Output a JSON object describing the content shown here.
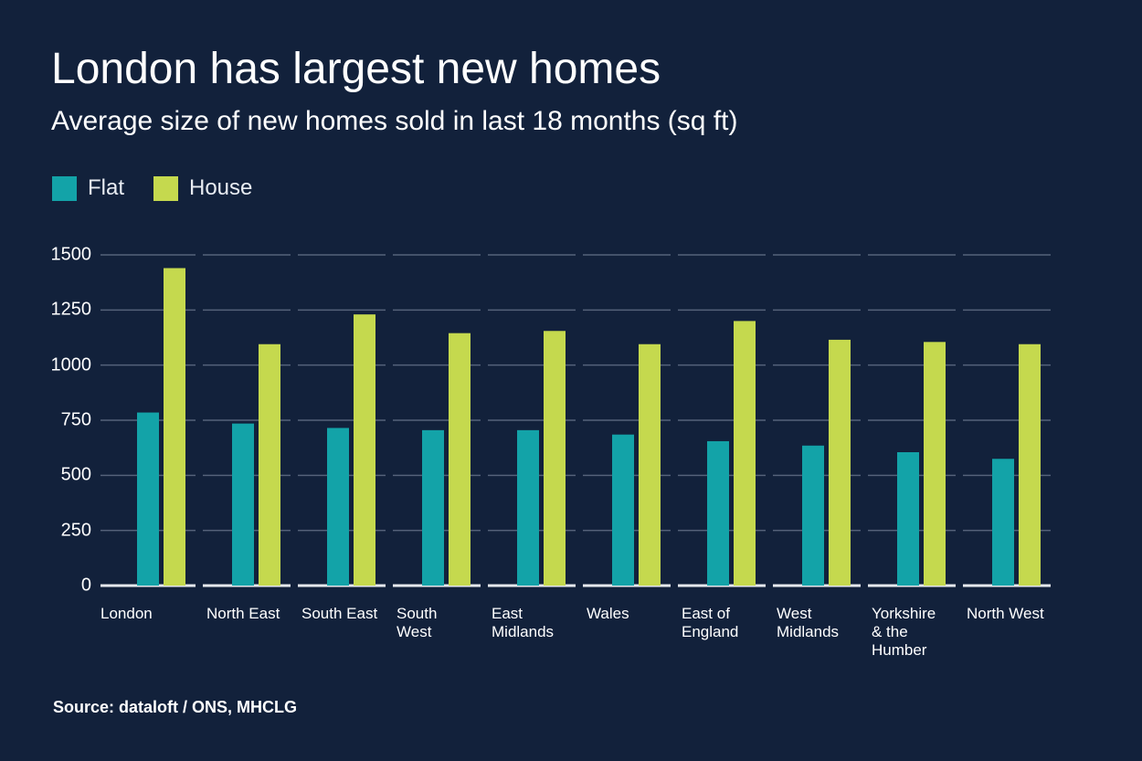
{
  "chart_data": {
    "type": "bar",
    "title": "London has largest new homes",
    "subtitle": "Average size of new homes sold in last 18 months (sq ft)",
    "categories": [
      "London",
      "North East",
      "South East",
      "South West",
      "East Midlands",
      "Wales",
      "East of England",
      "West Midlands",
      "Yorkshire & the Humber",
      "North West"
    ],
    "series": [
      {
        "name": "Flat",
        "color": "#13a3a8",
        "values": [
          785,
          735,
          715,
          705,
          705,
          685,
          655,
          635,
          605,
          575
        ]
      },
      {
        "name": "House",
        "color": "#c5d94e",
        "values": [
          1440,
          1095,
          1230,
          1145,
          1155,
          1095,
          1200,
          1115,
          1105,
          1095
        ]
      }
    ],
    "ylim": [
      0,
      1500
    ],
    "yticks": [
      0,
      250,
      500,
      750,
      1000,
      1250,
      1500
    ],
    "grid": true,
    "source": "Source: dataloft / ONS, MHCLG"
  }
}
